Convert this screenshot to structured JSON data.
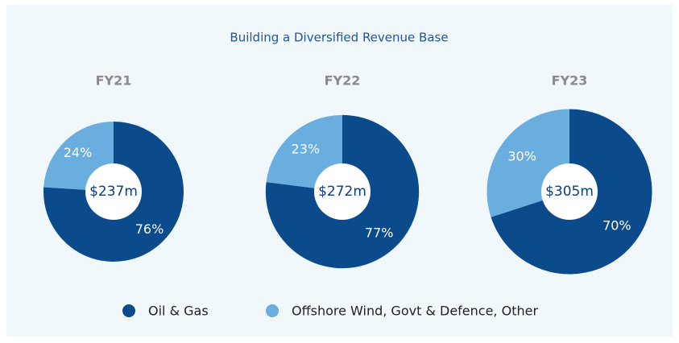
{
  "title": "Building a Diversified Revenue Base",
  "legend": {
    "categories": [
      "Oil & Gas",
      "Offshore Wind, Govt & Defence, Other"
    ],
    "colors": [
      "#0b4a8b",
      "#6aaee0"
    ]
  },
  "chart_data": [
    {
      "type": "pie",
      "title": "FY21",
      "values": [
        76,
        24
      ],
      "value_labels": [
        "76%",
        "24%"
      ],
      "total": 237,
      "total_label": "$237m"
    },
    {
      "type": "pie",
      "title": "FY22",
      "values": [
        77,
        23
      ],
      "value_labels": [
        "77%",
        "23%"
      ],
      "total": 272,
      "total_label": "$272m"
    },
    {
      "type": "pie",
      "title": "FY23",
      "values": [
        70,
        30
      ],
      "value_labels": [
        "70%",
        "30%"
      ],
      "total": 305,
      "total_label": "$305m"
    }
  ]
}
